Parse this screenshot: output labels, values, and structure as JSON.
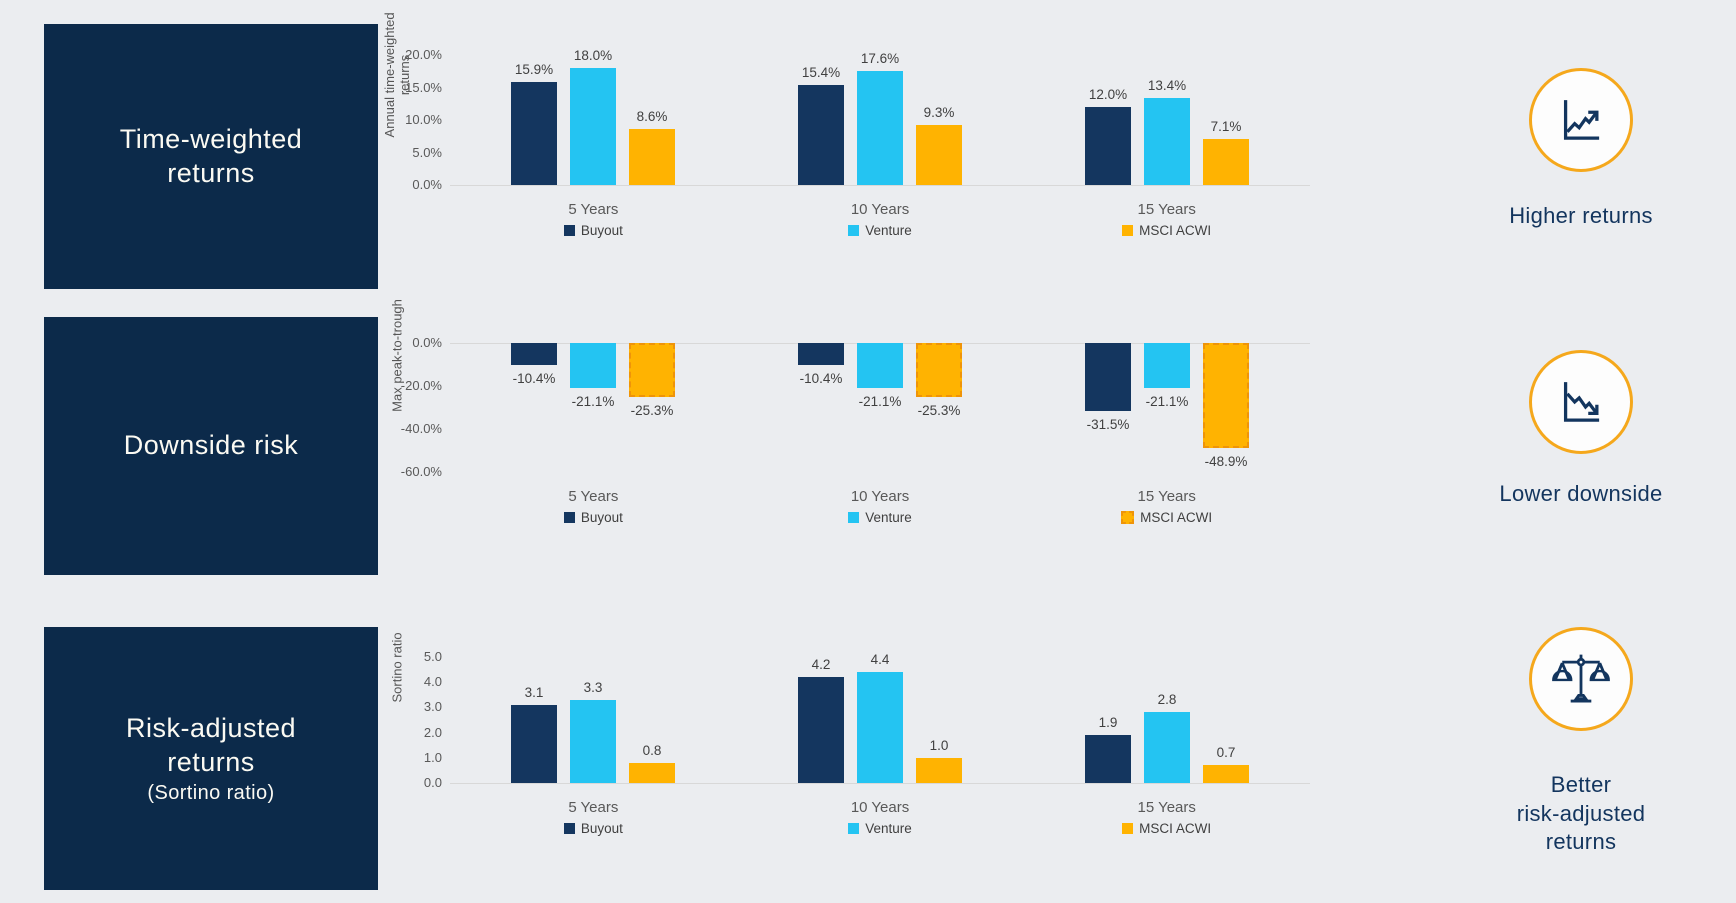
{
  "colors": {
    "background": "#ebedf0",
    "navy_box": "#0c2a4a",
    "bar_buyout": "#14365f",
    "bar_venture": "#24c4f2",
    "bar_msci": "#ffb301",
    "accent_ring": "#f5a81c",
    "text_navy": "#13355e"
  },
  "rows": [
    {
      "title": "Time-weighted\nreturns",
      "sub": "",
      "icon": "line-chart-up-icon",
      "benefit": "Higher returns"
    },
    {
      "title": "Downside risk",
      "sub": "",
      "icon": "line-chart-down-icon",
      "benefit": "Lower downside"
    },
    {
      "title": "Risk-adjusted\nreturns",
      "sub": "(Sortino ratio)",
      "icon": "balance-scales-icon",
      "benefit": "Better\nrisk-adjusted\nreturns"
    }
  ],
  "chart_data": [
    {
      "type": "bar",
      "title": "Time-weighted returns",
      "ylabel": "Annual time-weighted\nreturns",
      "categories": [
        "5 Years",
        "10 Years",
        "15 Years"
      ],
      "ylim": [
        0,
        20
      ],
      "grid": false,
      "legend_position": "bottom",
      "ticks": [
        {
          "label": "20.0%",
          "v": 20
        },
        {
          "label": "15.0%",
          "v": 15
        },
        {
          "label": "10.0%",
          "v": 10
        },
        {
          "label": "5.0%",
          "v": 5
        },
        {
          "label": "0.0%",
          "v": 0
        }
      ],
      "series": [
        {
          "name": "Buyout",
          "color": "#14365f",
          "dashed": false,
          "values": [
            15.9,
            15.4,
            12.0
          ],
          "labels": [
            "15.9%",
            "15.4%",
            "12.0%"
          ]
        },
        {
          "name": "Venture",
          "color": "#24c4f2",
          "dashed": false,
          "values": [
            18.0,
            17.6,
            13.4
          ],
          "labels": [
            "18.0%",
            "17.6%",
            "13.4%"
          ]
        },
        {
          "name": "MSCI ACWI",
          "color": "#ffb301",
          "dashed": false,
          "values": [
            8.6,
            9.3,
            7.1
          ],
          "labels": [
            "8.6%",
            "9.3%",
            "7.1%"
          ]
        }
      ]
    },
    {
      "type": "bar",
      "title": "Downside risk",
      "ylabel": "Max peak-to-trough",
      "categories": [
        "5 Years",
        "10 Years",
        "15 Years"
      ],
      "ylim": [
        -60,
        0
      ],
      "grid": false,
      "legend_position": "bottom",
      "ticks": [
        {
          "label": "0.0%",
          "v": 0
        },
        {
          "label": "-20.0%",
          "v": -20
        },
        {
          "label": "-40.0%",
          "v": -40
        },
        {
          "label": "-60.0%",
          "v": -60
        }
      ],
      "series": [
        {
          "name": "Buyout",
          "color": "#14365f",
          "dashed": false,
          "values": [
            -10.4,
            -10.4,
            -31.5
          ],
          "labels": [
            "-10.4%",
            "-10.4%",
            "-31.5%"
          ]
        },
        {
          "name": "Venture",
          "color": "#24c4f2",
          "dashed": false,
          "values": [
            -21.1,
            -21.1,
            -21.1
          ],
          "labels": [
            "-21.1%",
            "-21.1%",
            "-21.1%"
          ]
        },
        {
          "name": "MSCI ACWI",
          "color": "#ffb301",
          "dashed": true,
          "values": [
            -25.3,
            -25.3,
            -48.9
          ],
          "labels": [
            "-25.3%",
            "-25.3%",
            "-48.9%"
          ]
        }
      ]
    },
    {
      "type": "bar",
      "title": "Risk-adjusted returns (Sortino ratio)",
      "ylabel": "Sortino ratio",
      "categories": [
        "5 Years",
        "10 Years",
        "15 Years"
      ],
      "ylim": [
        0,
        5
      ],
      "grid": false,
      "legend_position": "bottom",
      "ticks": [
        {
          "label": "5.0",
          "v": 5
        },
        {
          "label": "4.0",
          "v": 4
        },
        {
          "label": "3.0",
          "v": 3
        },
        {
          "label": "2.0",
          "v": 2
        },
        {
          "label": "1.0",
          "v": 1
        },
        {
          "label": "0.0",
          "v": 0
        }
      ],
      "series": [
        {
          "name": "Buyout",
          "color": "#14365f",
          "dashed": false,
          "values": [
            3.1,
            4.2,
            1.9
          ],
          "labels": [
            "3.1",
            "4.2",
            "1.9"
          ]
        },
        {
          "name": "Venture",
          "color": "#24c4f2",
          "dashed": false,
          "values": [
            3.3,
            4.4,
            2.8
          ],
          "labels": [
            "3.3",
            "4.4",
            "2.8"
          ]
        },
        {
          "name": "MSCI ACWI",
          "color": "#ffb301",
          "dashed": false,
          "values": [
            0.8,
            1.0,
            0.7
          ],
          "labels": [
            "0.8",
            "1.0",
            "0.7"
          ]
        }
      ]
    }
  ]
}
